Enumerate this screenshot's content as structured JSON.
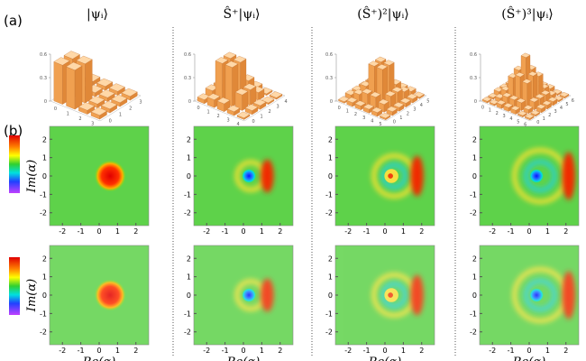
{
  "panel_labels": [
    "(a)",
    "(b)"
  ],
  "axes": {
    "xlabel": "Re(α)",
    "ylabel": "Im(α)",
    "xlim": [
      -2.7,
      2.7
    ],
    "ylim": [
      -2.7,
      2.7
    ],
    "xticks": [
      -2,
      -1,
      0,
      1,
      2
    ],
    "yticks": [
      -2,
      -1,
      0,
      1,
      2
    ],
    "zlim": [
      0,
      0.6
    ],
    "zticks": [
      0,
      0.3,
      0.6
    ]
  },
  "columns": [
    {
      "title": "|ψᵢ⟩",
      "floor_ticks": [
        0,
        1,
        2,
        3
      ],
      "bars": [
        [
          0.5,
          0.5,
          0.05,
          0.05
        ],
        [
          0.5,
          0.5,
          0.05,
          0.05
        ],
        [
          0.05,
          0.05,
          0.05,
          0.05
        ],
        [
          0.05,
          0.05,
          0.05,
          0.05
        ]
      ]
    },
    {
      "title": "Ŝ⁺|ψᵢ⟩",
      "floor_ticks": [
        0,
        1,
        2,
        3,
        4
      ],
      "bars": [
        [
          0.05,
          0.1,
          0.1,
          0.05,
          0.02
        ],
        [
          0.1,
          0.5,
          0.5,
          0.2,
          0.05
        ],
        [
          0.1,
          0.5,
          0.5,
          0.2,
          0.05
        ],
        [
          0.05,
          0.2,
          0.2,
          0.1,
          0.02
        ],
        [
          0.02,
          0.05,
          0.05,
          0.02,
          0.02
        ]
      ]
    },
    {
      "title": "(Ŝ⁺)²|ψᵢ⟩",
      "floor_ticks": [
        0,
        1,
        2,
        3,
        4,
        5
      ],
      "bars": [
        [
          0.02,
          0.05,
          0.05,
          0.05,
          0.05,
          0.02
        ],
        [
          0.05,
          0.1,
          0.15,
          0.15,
          0.1,
          0.05
        ],
        [
          0.05,
          0.15,
          0.45,
          0.45,
          0.15,
          0.05
        ],
        [
          0.05,
          0.15,
          0.45,
          0.45,
          0.15,
          0.05
        ],
        [
          0.05,
          0.1,
          0.15,
          0.15,
          0.1,
          0.05
        ],
        [
          0.02,
          0.05,
          0.05,
          0.05,
          0.05,
          0.02
        ]
      ]
    },
    {
      "title": "(Ŝ⁺)³|ψᵢ⟩",
      "floor_ticks": [
        0,
        1,
        2,
        3,
        4,
        5,
        6
      ],
      "bars": [
        [
          0.02,
          0.02,
          0.05,
          0.05,
          0.05,
          0.02,
          0.02
        ],
        [
          0.02,
          0.05,
          0.1,
          0.1,
          0.1,
          0.05,
          0.02
        ],
        [
          0.05,
          0.1,
          0.3,
          0.35,
          0.3,
          0.1,
          0.05
        ],
        [
          0.05,
          0.1,
          0.35,
          0.55,
          0.35,
          0.1,
          0.05
        ],
        [
          0.05,
          0.1,
          0.3,
          0.35,
          0.3,
          0.1,
          0.05
        ],
        [
          0.02,
          0.05,
          0.1,
          0.1,
          0.1,
          0.05,
          0.02
        ],
        [
          0.02,
          0.02,
          0.05,
          0.05,
          0.05,
          0.02,
          0.02
        ]
      ]
    }
  ]
}
